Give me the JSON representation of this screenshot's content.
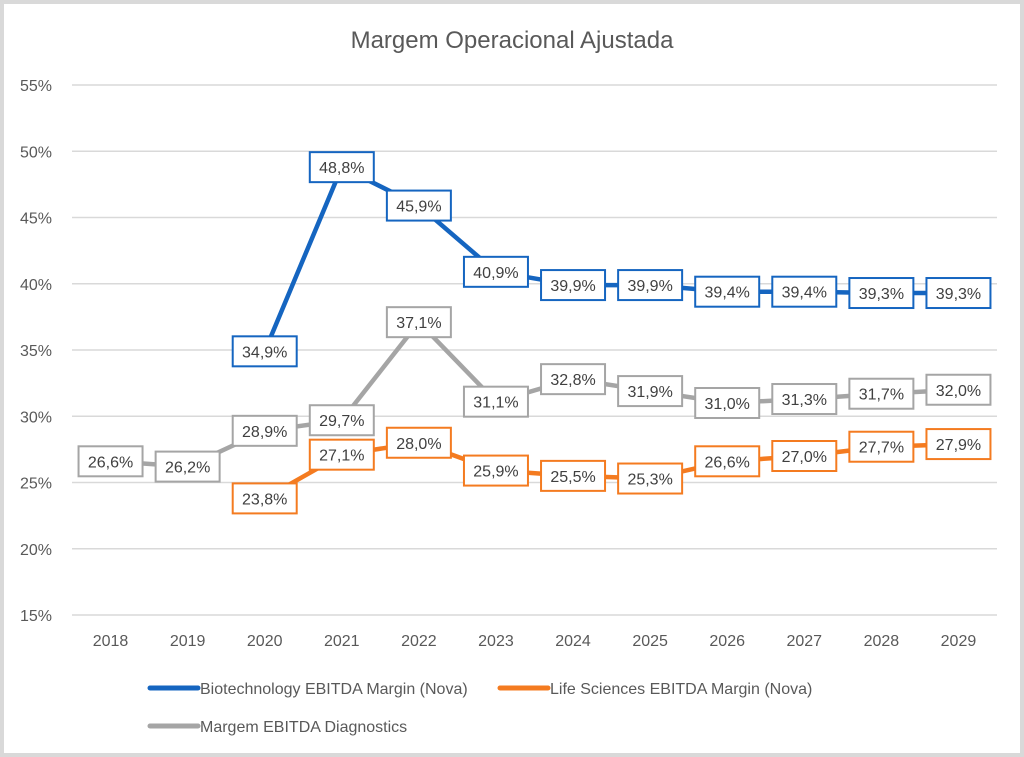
{
  "chart_data": {
    "type": "line",
    "title": "Margem Operacional Ajustada",
    "xlabel": "",
    "ylabel": "",
    "x": [
      "2018",
      "2019",
      "2020",
      "2021",
      "2022",
      "2023",
      "2024",
      "2025",
      "2026",
      "2027",
      "2028",
      "2029"
    ],
    "ylim": [
      15,
      55
    ],
    "yticks": [
      15,
      20,
      25,
      30,
      35,
      40,
      45,
      50,
      55
    ],
    "ytick_labels": [
      "15%",
      "20%",
      "25%",
      "30%",
      "35%",
      "40%",
      "45%",
      "50%",
      "55%"
    ],
    "grid": true,
    "legend_position": "bottom",
    "series": [
      {
        "name": "Biotechnology EBITDA Margin (Nova)",
        "color": "#1565c0",
        "values": [
          null,
          null,
          34.9,
          48.8,
          45.9,
          40.9,
          39.9,
          39.9,
          39.4,
          39.4,
          39.3,
          39.3
        ],
        "labels": [
          null,
          null,
          "34,9%",
          "48,8%",
          "45,9%",
          "40,9%",
          "39,9%",
          "39,9%",
          "39,4%",
          "39,4%",
          "39,3%",
          "39,3%"
        ]
      },
      {
        "name": "Life Sciences EBITDA Margin (Nova)",
        "color": "#f47b20",
        "values": [
          null,
          null,
          23.8,
          27.1,
          28.0,
          25.9,
          25.5,
          25.3,
          26.6,
          27.0,
          27.7,
          27.9
        ],
        "labels": [
          null,
          null,
          "23,8%",
          "27,1%",
          "28,0%",
          "25,9%",
          "25,5%",
          "25,3%",
          "26,6%",
          "27,0%",
          "27,7%",
          "27,9%"
        ]
      },
      {
        "name": "Margem EBITDA Diagnostics",
        "color": "#a5a5a5",
        "values": [
          26.6,
          26.2,
          28.9,
          29.7,
          37.1,
          31.1,
          32.8,
          31.9,
          31.0,
          31.3,
          31.7,
          32.0
        ],
        "labels": [
          "26,6%",
          "26,2%",
          "28,9%",
          "29,7%",
          "37,1%",
          "31,1%",
          "32,8%",
          "31,9%",
          "31,0%",
          "31,3%",
          "31,7%",
          "32,0%"
        ]
      }
    ]
  }
}
